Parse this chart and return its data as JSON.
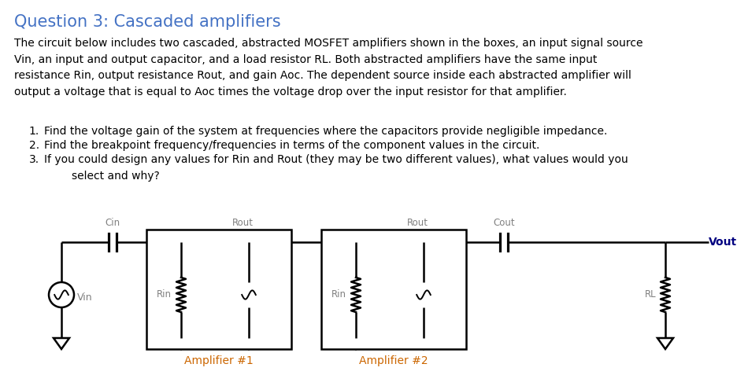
{
  "title": "Question 3: Cascaded amplifiers",
  "title_color": "#4472C4",
  "title_fontsize": 15,
  "body_text": "The circuit below includes two cascaded, abstracted MOSFET amplifiers shown in the boxes, an input signal source\nVin, an input and output capacitor, and a load resistor RL. Both abstracted amplifiers have the same input\nresistance Rin, output resistance Rout, and gain Aoc. The dependent source inside each abstracted amplifier will\noutput a voltage that is equal to Aoc times the voltage drop over the input resistor for that amplifier.",
  "body_fontsize": 10,
  "items": [
    "Find the voltage gain of the system at frequencies where the capacitors provide negligible impedance.",
    "Find the breakpoint frequency/frequencies in terms of the component values in the circuit.",
    "If you could design any values for Rin and Rout (they may be two different values), what values would you\n        select and why?"
  ],
  "item_fontsize": 10,
  "background_color": "#ffffff",
  "text_color": "#000000",
  "label_color": "#808080",
  "amp_label_color": "#CC6600",
  "vout_color": "#000080",
  "circuit_labels": {
    "Cin": "Cin",
    "Cout": "Cout",
    "Vin": "Vin",
    "Vout": "Vout",
    "Rin1": "Rin",
    "Rin2": "Rin",
    "Rout1": "Rout",
    "Rout2": "Rout",
    "RL": "RL",
    "amp1": "Amplifier #1",
    "amp2": "Amplifier #2"
  }
}
